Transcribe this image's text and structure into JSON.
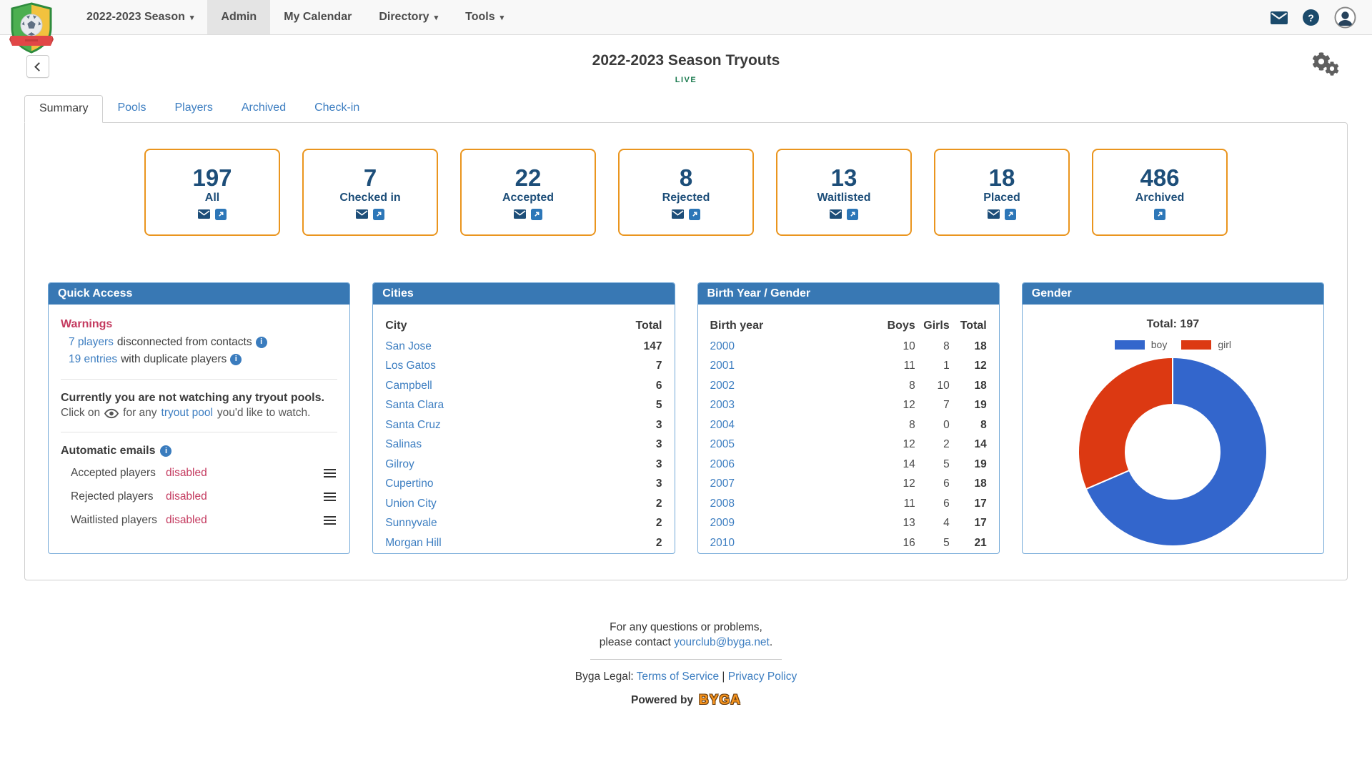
{
  "navbar": {
    "items": [
      {
        "label": "2022-2023 Season",
        "caret": true,
        "active": false
      },
      {
        "label": "Admin",
        "caret": false,
        "active": true
      },
      {
        "label": "My Calendar",
        "caret": false,
        "active": false
      },
      {
        "label": "Directory",
        "caret": true,
        "active": false
      },
      {
        "label": "Tools",
        "caret": true,
        "active": false
      }
    ]
  },
  "page": {
    "title": "2022-2023 Season Tryouts",
    "status": "LIVE"
  },
  "tabs": [
    {
      "label": "Summary",
      "active": true
    },
    {
      "label": "Pools",
      "active": false
    },
    {
      "label": "Players",
      "active": false
    },
    {
      "label": "Archived",
      "active": false
    },
    {
      "label": "Check-in",
      "active": false
    }
  ],
  "stats": [
    {
      "value": "197",
      "label": "All",
      "email": true,
      "link": true
    },
    {
      "value": "7",
      "label": "Checked in",
      "email": true,
      "link": true
    },
    {
      "value": "22",
      "label": "Accepted",
      "email": true,
      "link": true
    },
    {
      "value": "8",
      "label": "Rejected",
      "email": true,
      "link": true
    },
    {
      "value": "13",
      "label": "Waitlisted",
      "email": true,
      "link": true
    },
    {
      "value": "18",
      "label": "Placed",
      "email": true,
      "link": true
    },
    {
      "value": "486",
      "label": "Archived",
      "email": false,
      "link": true
    }
  ],
  "quick_access": {
    "title": "Quick Access",
    "warnings_title": "Warnings",
    "warnings": [
      {
        "link": "7 players",
        "text": "disconnected from contacts"
      },
      {
        "link": "19 entries",
        "text": "with duplicate players"
      }
    ],
    "watch_message": "Currently you are not watching any tryout pools.",
    "watch_hint": {
      "pre": "Click on",
      "mid": "for any",
      "link": "tryout pool",
      "post": "you'd like to watch."
    },
    "auto_emails_title": "Automatic emails",
    "auto_emails": [
      {
        "label": "Accepted players",
        "status": "disabled"
      },
      {
        "label": "Rejected players",
        "status": "disabled"
      },
      {
        "label": "Waitlisted players",
        "status": "disabled"
      }
    ]
  },
  "cities": {
    "title": "Cities",
    "col_city": "City",
    "col_total": "Total",
    "rows": [
      [
        "San Jose",
        "147"
      ],
      [
        "Los Gatos",
        "7"
      ],
      [
        "Campbell",
        "6"
      ],
      [
        "Santa Clara",
        "5"
      ],
      [
        "Santa Cruz",
        "3"
      ],
      [
        "Salinas",
        "3"
      ],
      [
        "Gilroy",
        "3"
      ],
      [
        "Cupertino",
        "3"
      ],
      [
        "Union City",
        "2"
      ],
      [
        "Sunnyvale",
        "2"
      ],
      [
        "Morgan Hill",
        "2"
      ]
    ]
  },
  "birth_year": {
    "title": "Birth Year / Gender",
    "columns": [
      "Birth year",
      "Boys",
      "Girls",
      "Total"
    ],
    "rows": [
      [
        "2000",
        "10",
        "8",
        "18"
      ],
      [
        "2001",
        "11",
        "1",
        "12"
      ],
      [
        "2002",
        "8",
        "10",
        "18"
      ],
      [
        "2003",
        "12",
        "7",
        "19"
      ],
      [
        "2004",
        "8",
        "0",
        "8"
      ],
      [
        "2005",
        "12",
        "2",
        "14"
      ],
      [
        "2006",
        "14",
        "5",
        "19"
      ],
      [
        "2007",
        "12",
        "6",
        "18"
      ],
      [
        "2008",
        "11",
        "6",
        "17"
      ],
      [
        "2009",
        "13",
        "4",
        "17"
      ],
      [
        "2010",
        "16",
        "5",
        "21"
      ]
    ]
  },
  "gender_panel": {
    "title": "Gender",
    "total_label": "Total: 197"
  },
  "chart_data": {
    "type": "pie",
    "donut": true,
    "title": "Total: 197",
    "total": 197,
    "labels": [
      "boy",
      "girl"
    ],
    "values": [
      135,
      62
    ],
    "colors": [
      "#3366cc",
      "#dc3912"
    ],
    "legend_position": "top"
  },
  "footer": {
    "line1": "For any questions or problems,",
    "line2_pre": "please contact",
    "email": "yourclub@byga.net",
    "line2_post": ".",
    "legal_pre": "Byga Legal:",
    "terms": "Terms of Service",
    "separator": "|",
    "privacy": "Privacy Policy",
    "powered_pre": "Powered by",
    "brand": "BYGA"
  },
  "colors": {
    "panel_header_blue": "#3878b4",
    "link_blue": "#3d7ec1",
    "stat_navy": "#1d4e79",
    "stat_border_orange": "#ea951e",
    "warning_crimson": "#c43a5f",
    "live_green": "#1a7a4e",
    "boy_blue": "#3366cc",
    "girl_red": "#dc3912"
  }
}
